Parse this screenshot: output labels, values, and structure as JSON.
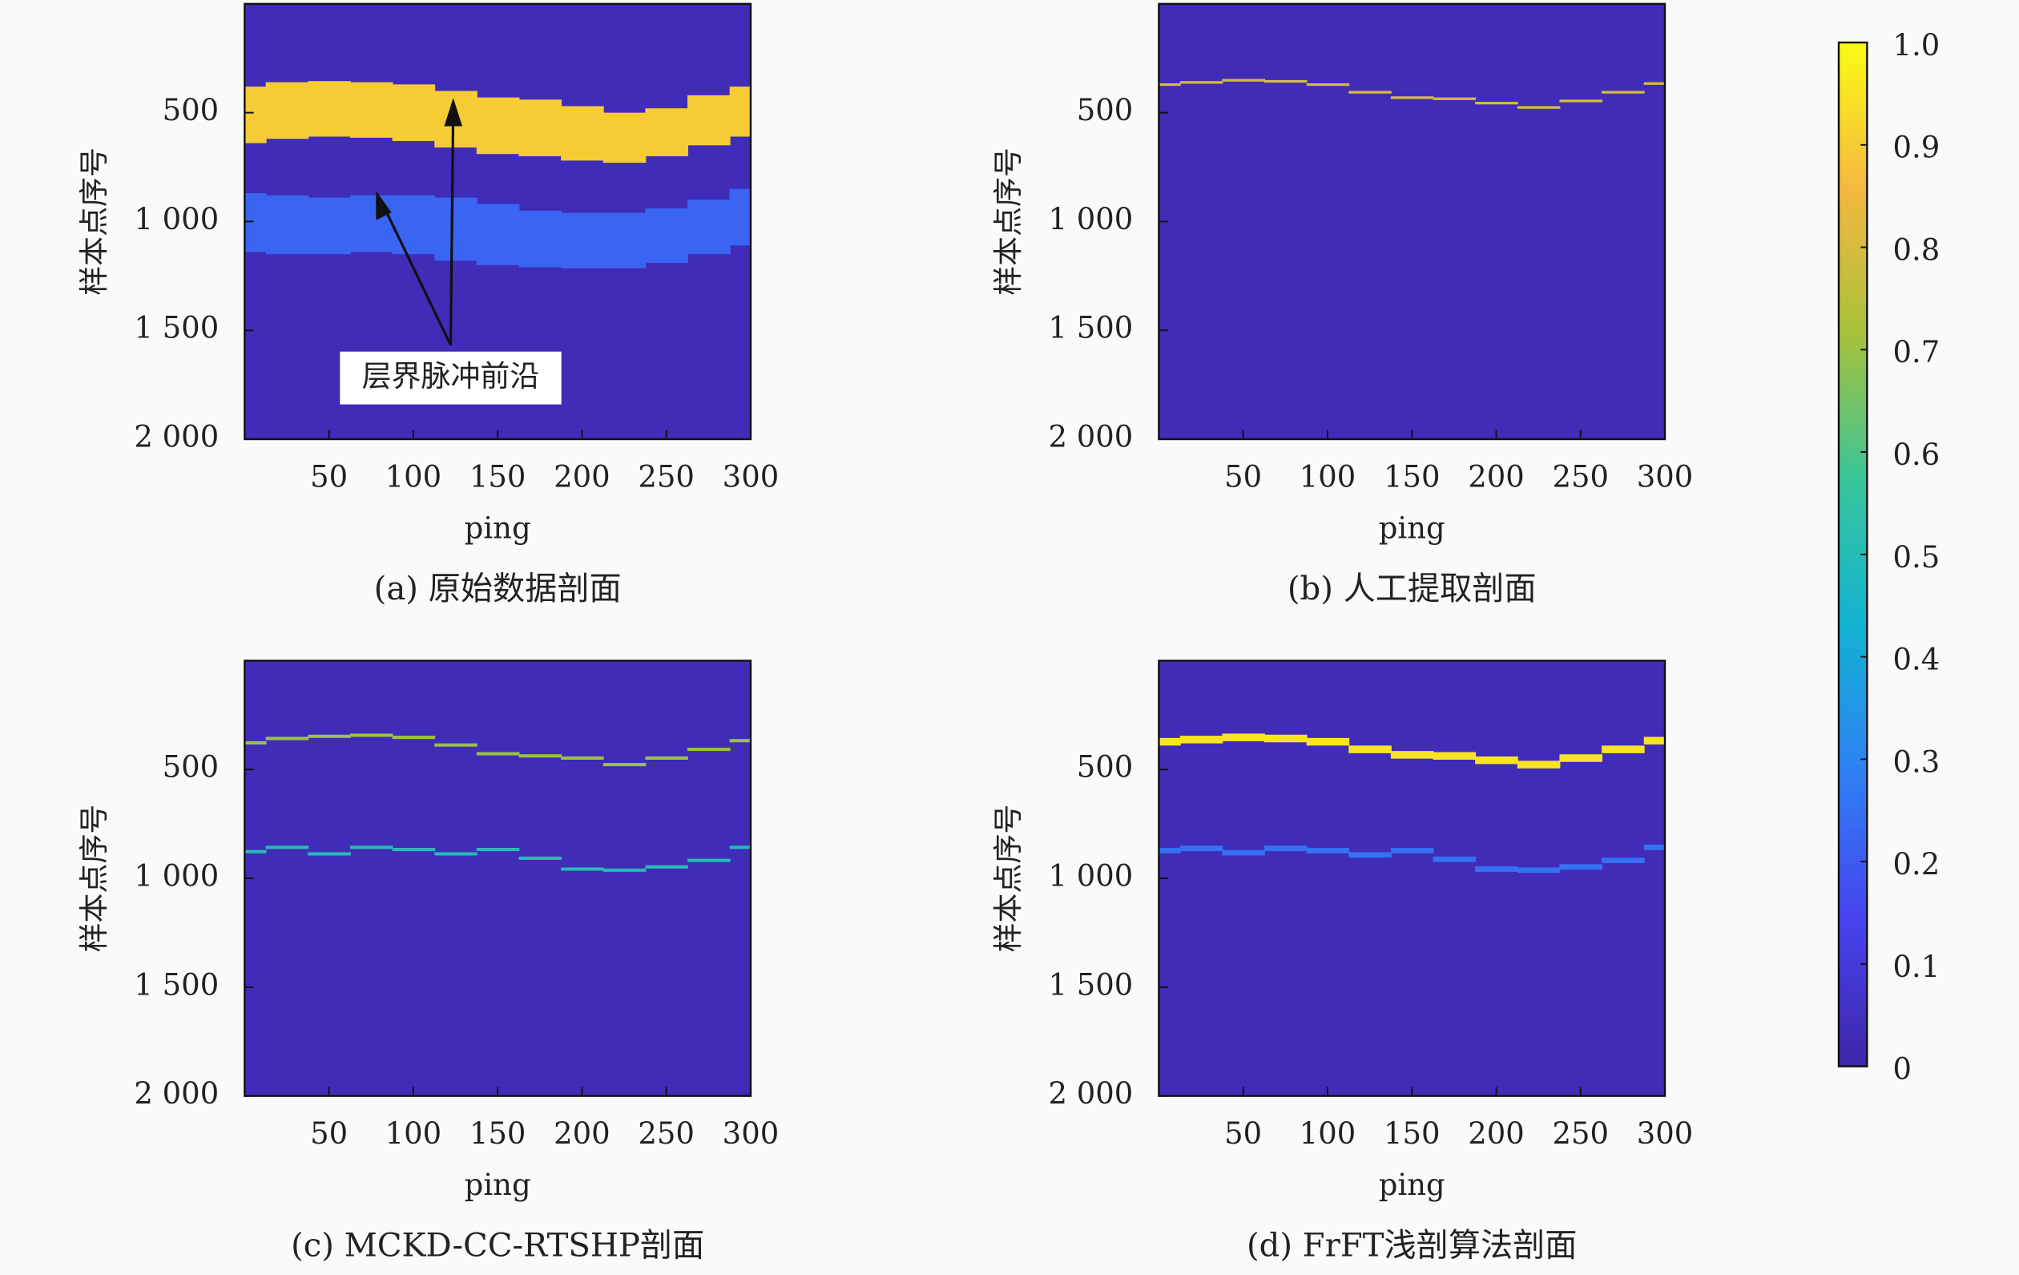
{
  "chart_data": [
    {
      "type": "heatmap",
      "caption": "(a) 原始数据剖面",
      "xlabel": "ping",
      "ylabel": "样本点序号",
      "xlim": [
        0,
        300
      ],
      "ylim": [
        2000,
        0
      ],
      "xticks": [
        50,
        100,
        150,
        200,
        250,
        300
      ],
      "yticks": [
        500,
        {
          "value": 1000,
          "label": "1 000"
        },
        {
          "value": 1500,
          "label": "1 500"
        },
        {
          "value": 2000,
          "label": "2 000"
        }
      ],
      "annotation": "层界脉冲前沿",
      "background": 0.03,
      "x": [
        0,
        25,
        50,
        75,
        100,
        125,
        150,
        175,
        200,
        225,
        250,
        275,
        300
      ],
      "bands": [
        {
          "value": 0.9,
          "top": [
            380,
            360,
            355,
            360,
            370,
            400,
            430,
            440,
            470,
            500,
            480,
            420,
            380
          ],
          "bottom": [
            640,
            620,
            610,
            615,
            630,
            660,
            690,
            700,
            720,
            730,
            700,
            650,
            610
          ]
        },
        {
          "value": 0.22,
          "top": [
            870,
            880,
            890,
            880,
            880,
            890,
            920,
            950,
            960,
            960,
            940,
            900,
            850
          ],
          "bottom": [
            1140,
            1150,
            1150,
            1140,
            1150,
            1180,
            1200,
            1210,
            1215,
            1215,
            1190,
            1150,
            1110
          ]
        }
      ]
    },
    {
      "type": "heatmap",
      "caption": "(b) 人工提取剖面",
      "xlabel": "ping",
      "ylabel": "样本点序号",
      "xlim": [
        0,
        300
      ],
      "ylim": [
        2000,
        0
      ],
      "xticks": [
        50,
        100,
        150,
        200,
        250,
        300
      ],
      "yticks": [
        500,
        {
          "value": 1000,
          "label": "1 000"
        },
        {
          "value": 1500,
          "label": "1 500"
        },
        {
          "value": 2000,
          "label": "2 000"
        }
      ],
      "background": 0.03,
      "x": [
        0,
        25,
        50,
        75,
        100,
        125,
        150,
        175,
        200,
        225,
        250,
        275,
        300
      ],
      "bands": [
        {
          "value": 0.8,
          "top": [
            365,
            355,
            345,
            350,
            365,
            400,
            425,
            430,
            450,
            470,
            440,
            400,
            360
          ],
          "bottom": [
            377,
            367,
            357,
            362,
            377,
            412,
            437,
            442,
            462,
            482,
            452,
            412,
            372
          ]
        }
      ]
    },
    {
      "type": "heatmap",
      "caption": "(c) MCKD-CC-RTSHP剖面",
      "xlabel": "ping",
      "ylabel": "样本点序号",
      "xlim": [
        0,
        300
      ],
      "ylim": [
        2000,
        0
      ],
      "xticks": [
        50,
        100,
        150,
        200,
        250,
        300
      ],
      "yticks": [
        500,
        {
          "value": 1000,
          "label": "1 000"
        },
        {
          "value": 1500,
          "label": "1 500"
        },
        {
          "value": 2000,
          "label": "2 000"
        }
      ],
      "background": 0.03,
      "x": [
        0,
        25,
        50,
        75,
        100,
        125,
        150,
        175,
        200,
        225,
        250,
        275,
        300
      ],
      "bands": [
        {
          "value": 0.7,
          "top": [
            370,
            350,
            340,
            335,
            345,
            380,
            420,
            430,
            440,
            470,
            440,
            400,
            360
          ],
          "bottom": [
            385,
            365,
            355,
            350,
            360,
            395,
            435,
            445,
            455,
            485,
            455,
            415,
            375
          ]
        },
        {
          "value": 0.5,
          "top": [
            870,
            850,
            880,
            850,
            860,
            880,
            860,
            900,
            950,
            955,
            940,
            910,
            850
          ],
          "bottom": [
            885,
            865,
            895,
            865,
            875,
            895,
            875,
            915,
            965,
            970,
            955,
            925,
            865
          ]
        }
      ]
    },
    {
      "type": "heatmap",
      "caption": "(d) FrFT浅剖算法剖面",
      "xlabel": "ping",
      "ylabel": "样本点序号",
      "xlim": [
        0,
        300
      ],
      "ylim": [
        2000,
        0
      ],
      "xticks": [
        50,
        100,
        150,
        200,
        250,
        300
      ],
      "yticks": [
        500,
        {
          "value": 1000,
          "label": "1 000"
        },
        {
          "value": 1500,
          "label": "1 500"
        },
        {
          "value": 2000,
          "label": "2 000"
        }
      ],
      "background": 0.03,
      "x": [
        0,
        25,
        50,
        75,
        100,
        125,
        150,
        175,
        200,
        225,
        250,
        275,
        300
      ],
      "bands": [
        {
          "value": 0.95,
          "top": [
            355,
            345,
            335,
            340,
            355,
            390,
            415,
            420,
            440,
            460,
            430,
            390,
            350
          ],
          "bottom": [
            390,
            380,
            370,
            375,
            390,
            425,
            450,
            455,
            475,
            495,
            465,
            425,
            385
          ]
        },
        {
          "value": 0.25,
          "top": [
            860,
            850,
            870,
            850,
            860,
            880,
            860,
            900,
            945,
            950,
            935,
            905,
            845
          ],
          "bottom": [
            885,
            875,
            895,
            875,
            885,
            905,
            885,
            925,
            970,
            975,
            960,
            930,
            870
          ]
        }
      ]
    }
  ],
  "colorbar": {
    "lim": [
      0,
      1
    ],
    "ticks": [
      0,
      0.1,
      0.2,
      0.3,
      0.4,
      0.5,
      0.6,
      0.7,
      0.8,
      0.9,
      {
        "value": 1,
        "label": "1.0"
      }
    ],
    "colormap": [
      "#3e26a8",
      "#4743f0",
      "#2f80f4",
      "#12b2d3",
      "#38c69b",
      "#a7c13a",
      "#f5b841",
      "#f9fb15"
    ]
  }
}
